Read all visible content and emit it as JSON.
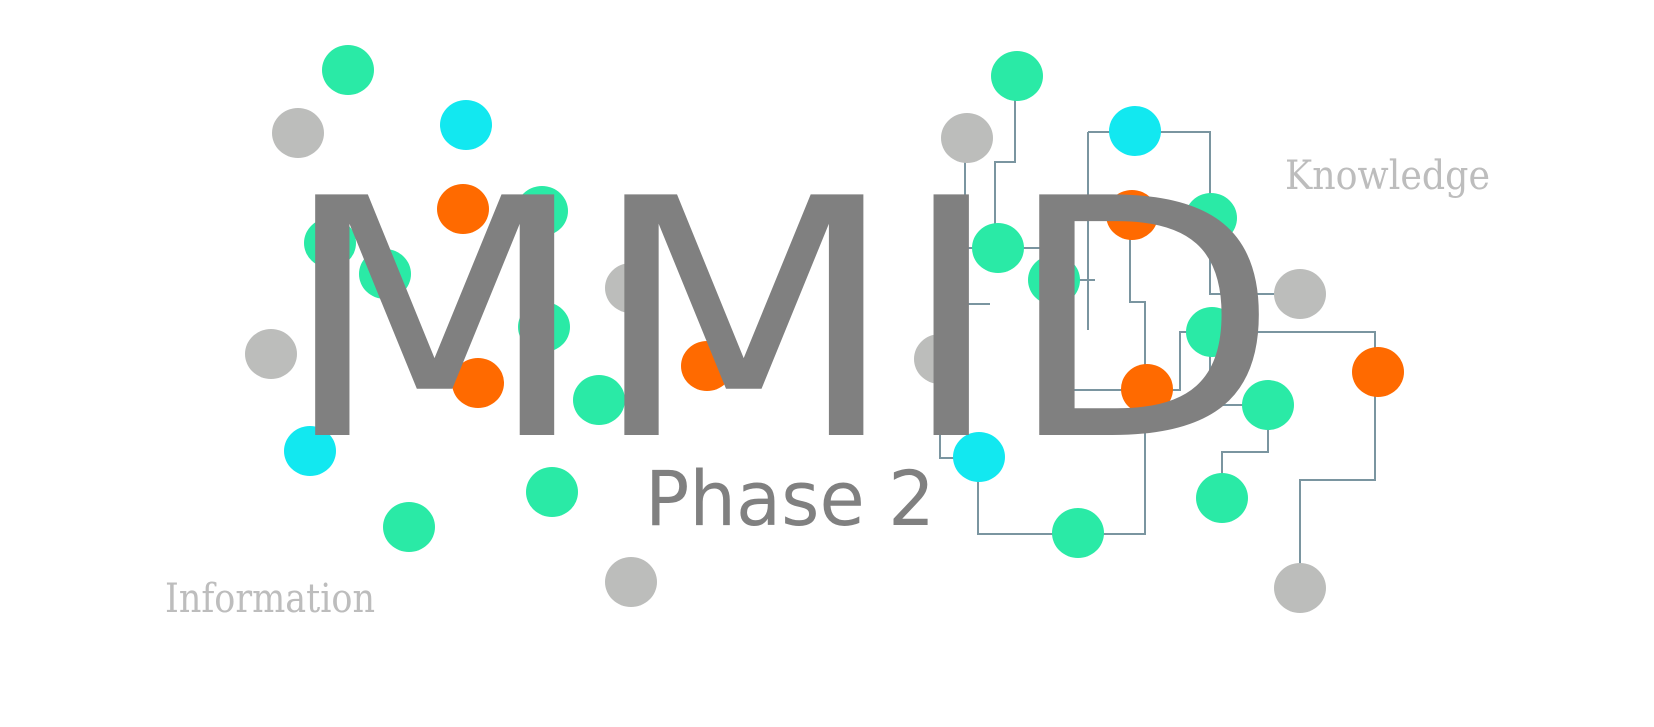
{
  "logo": {
    "title": "MMID",
    "subtitle": "Phase 2",
    "label_left": "Information",
    "label_right": "Knowledge"
  },
  "colors": {
    "background": "#ffffff",
    "title_text": "#808080",
    "side_text": "#bdbdbd",
    "wire": "#7a95a0",
    "green": "#2aeaa6",
    "cyan": "#12e8f0",
    "orange": "#ff6a00",
    "gray": "#bcbdbb"
  },
  "icons": {
    "node": "circle",
    "network": "circuit-lines"
  }
}
